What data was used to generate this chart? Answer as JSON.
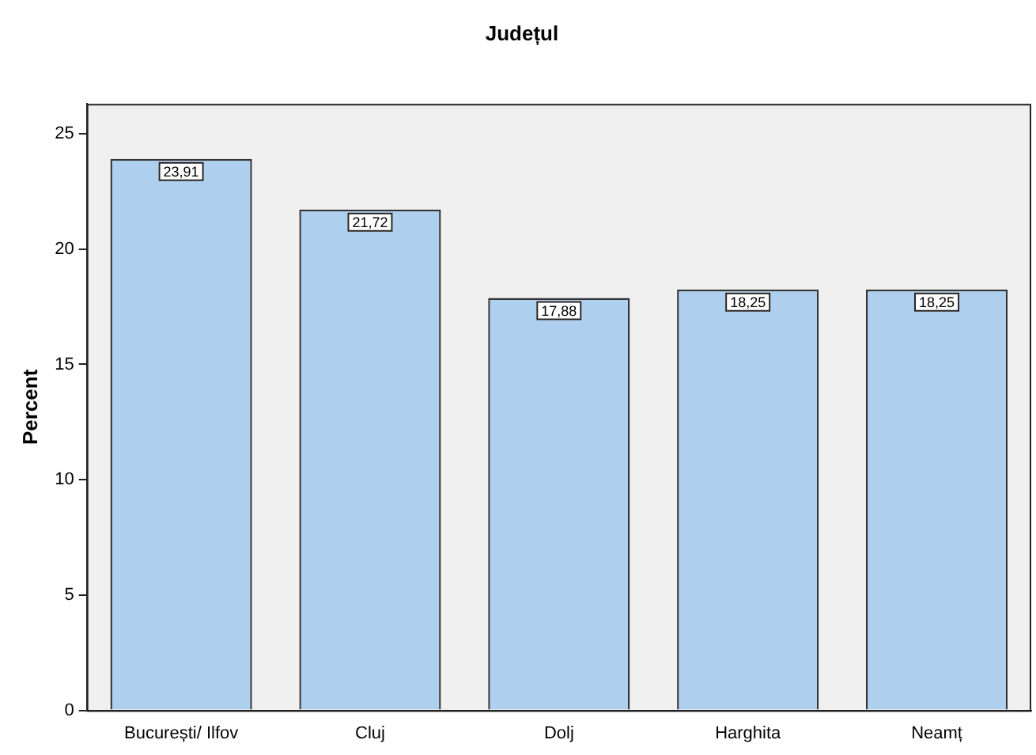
{
  "chart_data": {
    "type": "bar",
    "title": "Județul",
    "ylabel": "Percent",
    "categories": [
      "București/ Ilfov",
      "Cluj",
      "Dolj",
      "Harghita",
      "Neamț"
    ],
    "values": [
      23.91,
      21.72,
      17.88,
      18.25,
      18.25
    ],
    "value_labels": [
      "23,91",
      "21,72",
      "17,88",
      "18,25",
      "18,25"
    ],
    "color": "#aecfee",
    "ylim": [
      0,
      26.3
    ],
    "yticks": [
      0,
      5,
      10,
      15,
      20,
      25
    ],
    "grid": false,
    "legend": false
  }
}
